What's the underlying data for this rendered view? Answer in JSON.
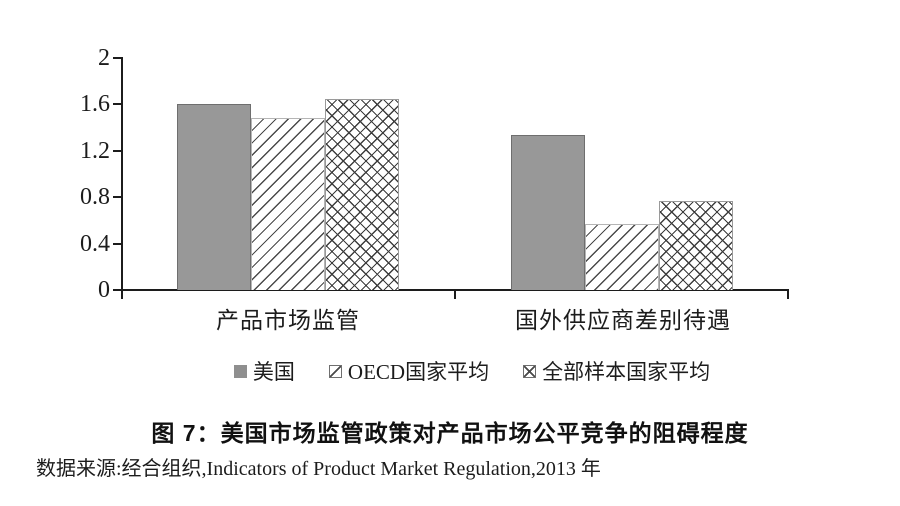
{
  "chart_data": {
    "type": "bar",
    "title": "图 7：美国市场监管政策对产品市场公平竞争的阻碍程度",
    "source": "数据来源:经合组织,Indicators of Product Market Regulation,2013 年",
    "categories": [
      "产品市场监管",
      "国外供应商差别待遇"
    ],
    "series": [
      {
        "name": "美国",
        "style": "solid-gray",
        "values": [
          1.6,
          1.34
        ]
      },
      {
        "name": "OECD国家平均",
        "style": "diagonal-hatch",
        "values": [
          1.48,
          0.57
        ]
      },
      {
        "name": "全部样本国家平均",
        "style": "crosshatch",
        "values": [
          1.65,
          0.77
        ]
      }
    ],
    "ylim": [
      0,
      2
    ],
    "ytick_labels": [
      "0",
      "0.4",
      "0.8",
      "1.2",
      "1.6",
      "2"
    ],
    "ytick_values": [
      0,
      0.4,
      0.8,
      1.2,
      1.6,
      2
    ],
    "grid": "off",
    "legend_position": "bottom"
  },
  "colors": {
    "bar_gray": "#989898",
    "hatch_line": "#4a4a4a",
    "axis": "#1c1c1c",
    "background": "#ffffff"
  }
}
